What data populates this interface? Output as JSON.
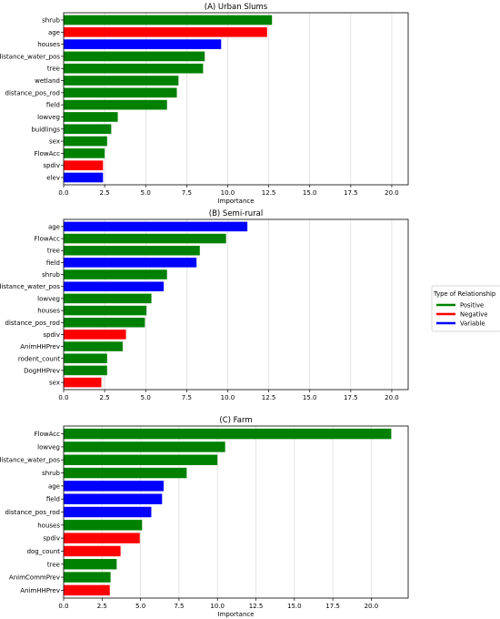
{
  "legend": {
    "title": "Type of Relationship",
    "items": [
      {
        "label": "Positive",
        "color": "#008000"
      },
      {
        "label": "Negative",
        "color": "#ff0000"
      },
      {
        "label": "Variable",
        "color": "#0000ff"
      }
    ]
  },
  "chart_data": [
    {
      "type": "bar",
      "orientation": "horizontal",
      "title": "(A) Urban Slums",
      "xlabel": "Importance",
      "xlim": [
        0,
        21
      ],
      "xticks": [
        "0.0",
        "2.5",
        "5.0",
        "7.5",
        "10.0",
        "12.5",
        "15.0",
        "17.5",
        "20.0"
      ],
      "grid": true,
      "bars": [
        {
          "label": "shrub",
          "value": 12.7,
          "relationship": "Positive"
        },
        {
          "label": "age",
          "value": 12.4,
          "relationship": "Negative"
        },
        {
          "label": "houses",
          "value": 9.6,
          "relationship": "Variable"
        },
        {
          "label": "distance_water_pos",
          "value": 8.6,
          "relationship": "Positive"
        },
        {
          "label": "tree",
          "value": 8.5,
          "relationship": "Positive"
        },
        {
          "label": "wetland",
          "value": 7.0,
          "relationship": "Positive"
        },
        {
          "label": "distance_pos_rod",
          "value": 6.9,
          "relationship": "Positive"
        },
        {
          "label": "field",
          "value": 6.3,
          "relationship": "Positive"
        },
        {
          "label": "lowveg",
          "value": 3.3,
          "relationship": "Positive"
        },
        {
          "label": "buidlings",
          "value": 2.9,
          "relationship": "Positive"
        },
        {
          "label": "sex",
          "value": 2.65,
          "relationship": "Positive"
        },
        {
          "label": "FlowAcc",
          "value": 2.5,
          "relationship": "Positive"
        },
        {
          "label": "spdiv",
          "value": 2.4,
          "relationship": "Negative"
        },
        {
          "label": "elev",
          "value": 2.4,
          "relationship": "Variable"
        }
      ]
    },
    {
      "type": "bar",
      "orientation": "horizontal",
      "title": "(B) Semi-rural",
      "xlabel": "",
      "xlim": [
        0,
        21
      ],
      "xticks": [
        "0.0",
        "2.5",
        "5.0",
        "7.5",
        "10.0",
        "12.5",
        "15.0",
        "17.5",
        "20.0"
      ],
      "grid": true,
      "bars": [
        {
          "label": "age",
          "value": 11.2,
          "relationship": "Variable"
        },
        {
          "label": "FlowAcc",
          "value": 9.9,
          "relationship": "Positive"
        },
        {
          "label": "tree",
          "value": 8.3,
          "relationship": "Positive"
        },
        {
          "label": "field",
          "value": 8.1,
          "relationship": "Variable"
        },
        {
          "label": "shrub",
          "value": 6.3,
          "relationship": "Positive"
        },
        {
          "label": "distance_water_pos",
          "value": 6.1,
          "relationship": "Variable"
        },
        {
          "label": "lowveg",
          "value": 5.35,
          "relationship": "Positive"
        },
        {
          "label": "houses",
          "value": 5.05,
          "relationship": "Positive"
        },
        {
          "label": "distance_pos_rod",
          "value": 4.95,
          "relationship": "Positive"
        },
        {
          "label": "spdiv",
          "value": 3.8,
          "relationship": "Negative"
        },
        {
          "label": "AnimHHPrev",
          "value": 3.6,
          "relationship": "Positive"
        },
        {
          "label": "rodent_count",
          "value": 2.65,
          "relationship": "Positive"
        },
        {
          "label": "DogHHPrev",
          "value": 2.65,
          "relationship": "Positive"
        },
        {
          "label": "sex",
          "value": 2.3,
          "relationship": "Negative"
        }
      ]
    },
    {
      "type": "bar",
      "orientation": "horizontal",
      "title": "(C) Farm",
      "xlabel": "Importance",
      "xlim": [
        0,
        22.4
      ],
      "xticks": [
        "0.0",
        "2.5",
        "5.0",
        "7.5",
        "10.0",
        "12.5",
        "15.0",
        "17.5",
        "20.0"
      ],
      "grid": true,
      "bars": [
        {
          "label": "FlowAcc",
          "value": 21.3,
          "relationship": "Positive"
        },
        {
          "label": "lowveg",
          "value": 10.5,
          "relationship": "Positive"
        },
        {
          "label": "distance_water_pos",
          "value": 10.0,
          "relationship": "Positive"
        },
        {
          "label": "shrub",
          "value": 8.0,
          "relationship": "Positive"
        },
        {
          "label": "age",
          "value": 6.5,
          "relationship": "Variable"
        },
        {
          "label": "field",
          "value": 6.4,
          "relationship": "Variable"
        },
        {
          "label": "distance_pos_rod",
          "value": 5.7,
          "relationship": "Variable"
        },
        {
          "label": "houses",
          "value": 5.1,
          "relationship": "Positive"
        },
        {
          "label": "spdiv",
          "value": 4.95,
          "relationship": "Negative"
        },
        {
          "label": "dog_count",
          "value": 3.7,
          "relationship": "Negative"
        },
        {
          "label": "tree",
          "value": 3.45,
          "relationship": "Positive"
        },
        {
          "label": "AnimCommPrev",
          "value": 3.05,
          "relationship": "Positive"
        },
        {
          "label": "AnimHHPrev",
          "value": 3.0,
          "relationship": "Negative"
        }
      ]
    }
  ]
}
